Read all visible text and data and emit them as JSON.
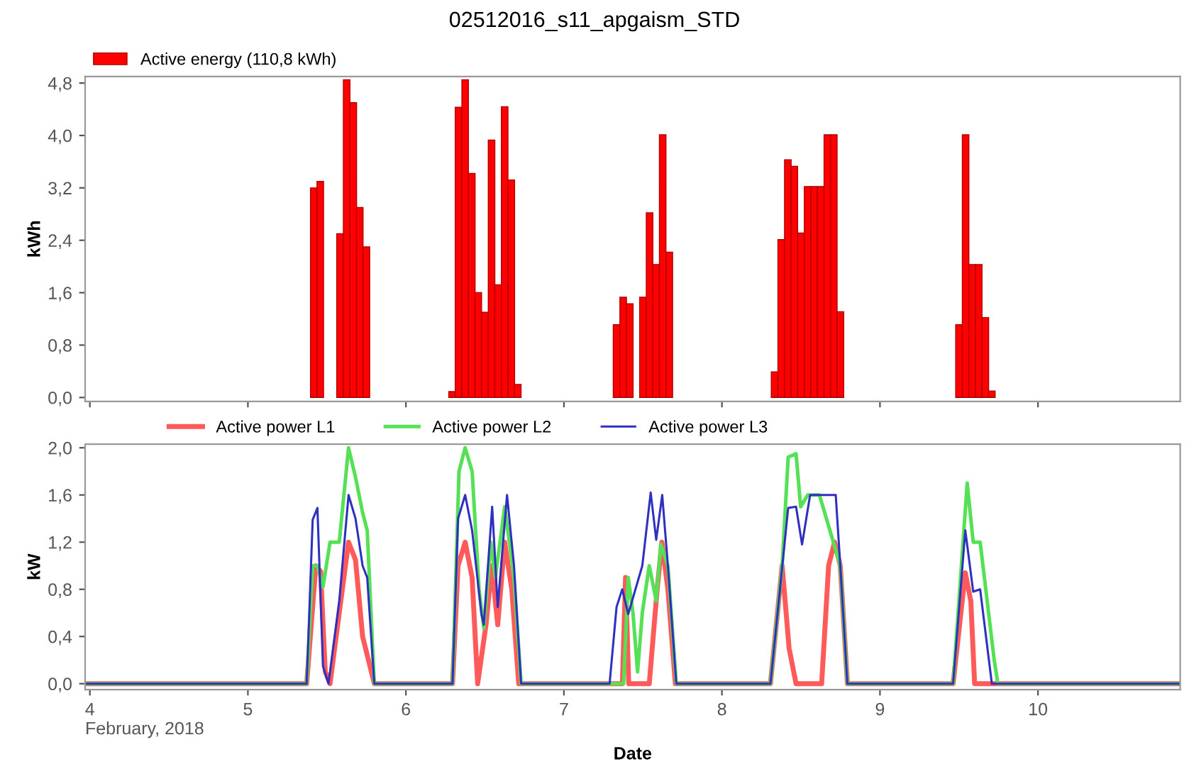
{
  "chart_data": [
    {
      "type": "bar",
      "title": "02512016_s11_apgaism_STD",
      "ylabel": "kWh",
      "legend": "top left",
      "tick_labels": "y",
      "xlim": [
        3.97,
        10.9
      ],
      "xticks": [
        4,
        5,
        6,
        7,
        8,
        9,
        10
      ],
      "ylim": [
        -0.06,
        4.9
      ],
      "yticks": [
        {
          "value": 0,
          "label": "0,0"
        },
        {
          "value": 0.8,
          "label": "0,8"
        },
        {
          "value": 1.6,
          "label": "1,6"
        },
        {
          "value": 2.4,
          "label": "2,4"
        },
        {
          "value": 3.2,
          "label": "3,2"
        },
        {
          "value": 4.0,
          "label": "4,0"
        },
        {
          "value": 4.8,
          "label": "4,8"
        }
      ],
      "series": [
        {
          "name": "Active energy (110,8 kWh)",
          "color": "#ff0000",
          "x": [
            5.417,
            5.458,
            5.583,
            5.625,
            5.667,
            5.708,
            5.75,
            6.292,
            6.333,
            6.375,
            6.417,
            6.458,
            6.5,
            6.542,
            6.583,
            6.625,
            6.667,
            6.708,
            7.333,
            7.375,
            7.417,
            7.5,
            7.542,
            7.583,
            7.625,
            7.667,
            8.333,
            8.375,
            8.417,
            8.458,
            8.5,
            8.542,
            8.583,
            8.625,
            8.667,
            8.708,
            8.75,
            9.5,
            9.542,
            9.583,
            9.625,
            9.667,
            9.708
          ],
          "values": [
            3.2,
            3.3,
            2.5,
            4.85,
            4.5,
            2.9,
            2.3,
            0.09,
            4.43,
            4.85,
            3.42,
            1.6,
            1.3,
            3.93,
            1.72,
            4.44,
            3.32,
            0.2,
            1.11,
            1.53,
            1.43,
            1.53,
            2.82,
            2.03,
            4.01,
            2.22,
            0.39,
            2.41,
            3.63,
            3.53,
            2.51,
            3.22,
            3.22,
            3.22,
            4.01,
            4.01,
            1.31,
            1.11,
            4.01,
            2.03,
            2.03,
            1.22,
            0.1
          ]
        }
      ]
    },
    {
      "type": "line",
      "xlabel": "Date",
      "ylabel": "kW",
      "legend": "top",
      "xlim": [
        3.97,
        10.9
      ],
      "xticks": [
        4,
        5,
        6,
        7,
        8,
        9,
        10
      ],
      "ylim": [
        -0.05,
        2.03
      ],
      "yticks": [
        {
          "value": 0,
          "label": "0,0"
        },
        {
          "value": 0.4,
          "label": "0,4"
        },
        {
          "value": 0.8,
          "label": "0,8"
        },
        {
          "value": 1.2,
          "label": "1,2"
        },
        {
          "value": 1.6,
          "label": "1,6"
        },
        {
          "value": 2.0,
          "label": "2,0"
        }
      ],
      "annotations": [
        "February, 2018"
      ],
      "series": [
        {
          "name": "Active power L1",
          "color": "#ff5a5a",
          "x": [
            3.97,
            5.372,
            5.43,
            5.46,
            5.49,
            5.52,
            5.578,
            5.637,
            5.681,
            5.726,
            5.8,
            6.295,
            6.33,
            6.375,
            6.419,
            6.454,
            6.507,
            6.543,
            6.581,
            6.625,
            6.67,
            6.714,
            7.37,
            7.39,
            7.41,
            7.54,
            7.59,
            7.62,
            7.658,
            7.705,
            8.307,
            8.381,
            8.425,
            8.469,
            8.631,
            8.675,
            8.713,
            8.749,
            8.794,
            9.463,
            9.54,
            9.575,
            9.599,
            10.9
          ],
          "values": [
            0,
            0,
            1.0,
            0.95,
            0.1,
            0,
            0.6,
            1.2,
            1.05,
            0.4,
            0,
            0,
            1.0,
            1.2,
            0.9,
            0,
            0.5,
            1.0,
            0.5,
            1.2,
            0.8,
            0,
            0,
            0.9,
            0,
            0,
            0.8,
            1.2,
            0.8,
            0,
            0,
            1.0,
            0.3,
            0,
            0,
            1.0,
            1.2,
            1.0,
            0,
            0,
            0.94,
            0.7,
            0,
            0
          ]
        },
        {
          "name": "Active power L2",
          "color": "#55e055",
          "x": [
            3.97,
            5.372,
            5.41,
            5.44,
            5.475,
            5.52,
            5.578,
            5.637,
            5.681,
            5.726,
            5.755,
            5.8,
            6.295,
            6.336,
            6.375,
            6.419,
            6.463,
            6.493,
            6.537,
            6.566,
            6.625,
            6.684,
            6.729,
            7.378,
            7.407,
            7.437,
            7.466,
            7.496,
            7.54,
            7.584,
            7.613,
            7.658,
            7.711,
            8.307,
            8.381,
            8.419,
            8.469,
            8.498,
            8.543,
            8.617,
            8.705,
            8.749,
            8.794,
            9.463,
            9.552,
            9.59,
            9.634,
            9.723,
            9.746,
            10.9
          ],
          "values": [
            0,
            0,
            1.0,
            1.0,
            0.82,
            1.2,
            1.2,
            2.0,
            1.75,
            1.45,
            1.3,
            0,
            0,
            1.8,
            2.0,
            1.8,
            0.8,
            0.47,
            1.2,
            0.9,
            1.5,
            0.9,
            0,
            0,
            0.9,
            0.6,
            0.1,
            0.6,
            1.0,
            0.7,
            1.18,
            1.0,
            0,
            0,
            1.0,
            1.92,
            1.95,
            1.5,
            1.6,
            1.6,
            1.2,
            1.0,
            0,
            0,
            1.7,
            1.2,
            1.2,
            0.2,
            0,
            0
          ]
        },
        {
          "name": "Active power L3",
          "color": "#3030c0",
          "x": [
            3.97,
            5.372,
            5.41,
            5.44,
            5.475,
            5.51,
            5.578,
            5.637,
            5.681,
            5.726,
            5.755,
            5.8,
            6.295,
            6.33,
            6.375,
            6.419,
            6.478,
            6.493,
            6.546,
            6.581,
            6.64,
            6.684,
            6.729,
            7.289,
            7.333,
            7.369,
            7.407,
            7.496,
            7.549,
            7.584,
            7.622,
            7.658,
            7.711,
            8.307,
            8.419,
            8.469,
            8.507,
            8.558,
            8.72,
            8.749,
            8.794,
            9.463,
            9.54,
            9.569,
            9.59,
            9.634,
            9.708,
            10.9
          ],
          "values": [
            0,
            0,
            1.39,
            1.49,
            0.15,
            0,
            0.7,
            1.6,
            1.4,
            1.0,
            0.9,
            0,
            0,
            1.4,
            1.6,
            1.3,
            0.59,
            0.5,
            1.5,
            0.65,
            1.6,
            1.0,
            0,
            0,
            0.65,
            0.8,
            0.59,
            1.0,
            1.62,
            1.22,
            1.6,
            1.0,
            0,
            0,
            1.49,
            1.5,
            1.18,
            1.6,
            1.6,
            1.0,
            0,
            0,
            1.3,
            1.0,
            0.78,
            0.8,
            0,
            0
          ]
        }
      ]
    }
  ]
}
